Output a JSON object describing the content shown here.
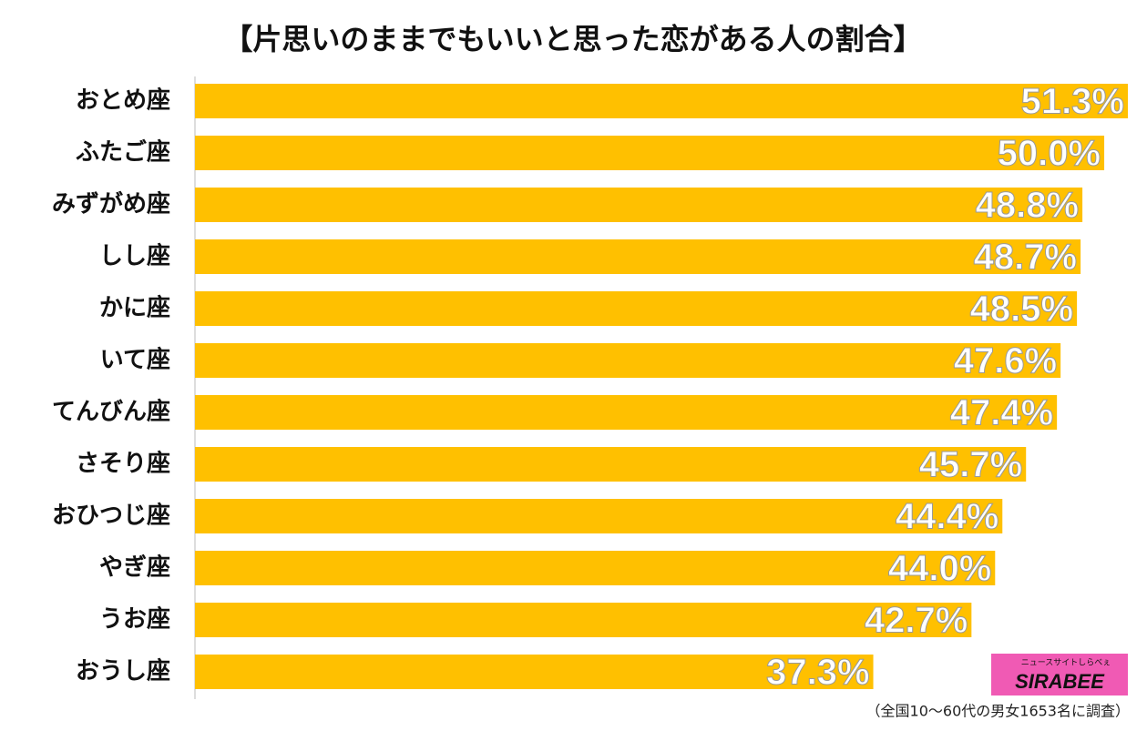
{
  "chart_data": {
    "type": "barh",
    "title": "【片思いのままでもいいと思った恋がある人の割合】",
    "categories": [
      "おとめ座",
      "ふたご座",
      "みずがめ座",
      "しし座",
      "かに座",
      "いて座",
      "てんびん座",
      "さそり座",
      "おひつじ座",
      "やぎ座",
      "うお座",
      "おうし座"
    ],
    "values": [
      51.3,
      50.0,
      48.8,
      48.7,
      48.5,
      47.6,
      47.4,
      45.7,
      44.4,
      44.0,
      42.7,
      37.3
    ],
    "value_labels": [
      "51.3%",
      "50.0%",
      "48.8%",
      "48.7%",
      "48.5%",
      "47.6%",
      "47.4%",
      "45.7%",
      "44.4%",
      "44.0%",
      "42.7%",
      "37.3%"
    ],
    "color": "#FFC000",
    "note": "（全国10〜60代の男女1653名に調査）",
    "logo": {
      "text": "SIRABEE",
      "tagline": "ニュースサイトしらべぇ"
    }
  }
}
